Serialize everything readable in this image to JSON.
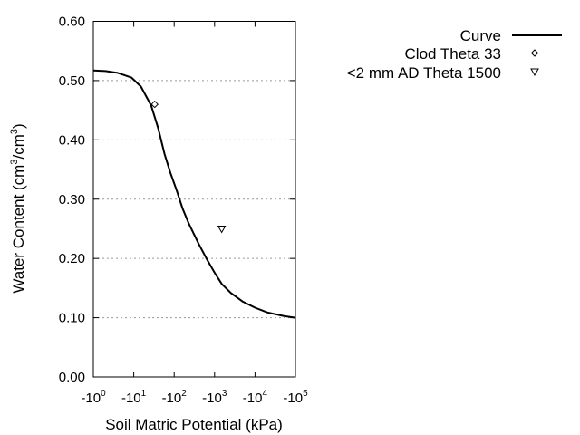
{
  "chart_data": {
    "type": "line",
    "xlabel": "Soil Matric Potential (kPa)",
    "ylabel": "Water Content (cm3/cm3)",
    "ylabel_parts": {
      "base1": "Water Content (cm",
      "sup1": "3",
      "mid": "/cm",
      "sup2": "3",
      "end": ")"
    },
    "x_scale": "log",
    "x_sign": "negative",
    "xlim": [
      1,
      100000
    ],
    "ylim": [
      0.0,
      0.6
    ],
    "x_ticks": [
      {
        "value": 1,
        "base": "-10",
        "exp": "0"
      },
      {
        "value": 10,
        "base": "-10",
        "exp": "1"
      },
      {
        "value": 100,
        "base": "-10",
        "exp": "2"
      },
      {
        "value": 1000,
        "base": "-10",
        "exp": "3"
      },
      {
        "value": 10000,
        "base": "-10",
        "exp": "4"
      },
      {
        "value": 100000,
        "base": "-10",
        "exp": "5"
      }
    ],
    "y_ticks": [
      {
        "value": 0.0,
        "label": "0.00"
      },
      {
        "value": 0.1,
        "label": "0.10"
      },
      {
        "value": 0.2,
        "label": "0.20"
      },
      {
        "value": 0.3,
        "label": "0.30"
      },
      {
        "value": 0.4,
        "label": "0.40"
      },
      {
        "value": 0.5,
        "label": "0.50"
      },
      {
        "value": 0.6,
        "label": "0.60"
      }
    ],
    "grid": "horizontal dotted",
    "legend_placement": "right, outside",
    "series": [
      {
        "name": "Curve",
        "type": "line",
        "color": "#000000",
        "x": [
          1,
          2,
          4,
          8.8,
          15,
          27,
          40,
          58,
          80,
          115,
          160,
          230,
          400,
          650,
          1000,
          1500,
          2500,
          5000,
          10000,
          20000,
          50000,
          100000
        ],
        "y": [
          0.517,
          0.516,
          0.513,
          0.505,
          0.49,
          0.458,
          0.42,
          0.376,
          0.345,
          0.315,
          0.285,
          0.259,
          0.225,
          0.198,
          0.176,
          0.157,
          0.142,
          0.127,
          0.117,
          0.109,
          0.103,
          0.1
        ]
      },
      {
        "name": "Clod Theta 33",
        "type": "scatter",
        "marker": "diamond",
        "x": [
          33
        ],
        "y": [
          0.46
        ]
      },
      {
        "name": "<2 mm AD Theta 1500",
        "type": "scatter",
        "marker": "triangle-down",
        "x": [
          1500
        ],
        "y": [
          0.25
        ]
      }
    ]
  }
}
